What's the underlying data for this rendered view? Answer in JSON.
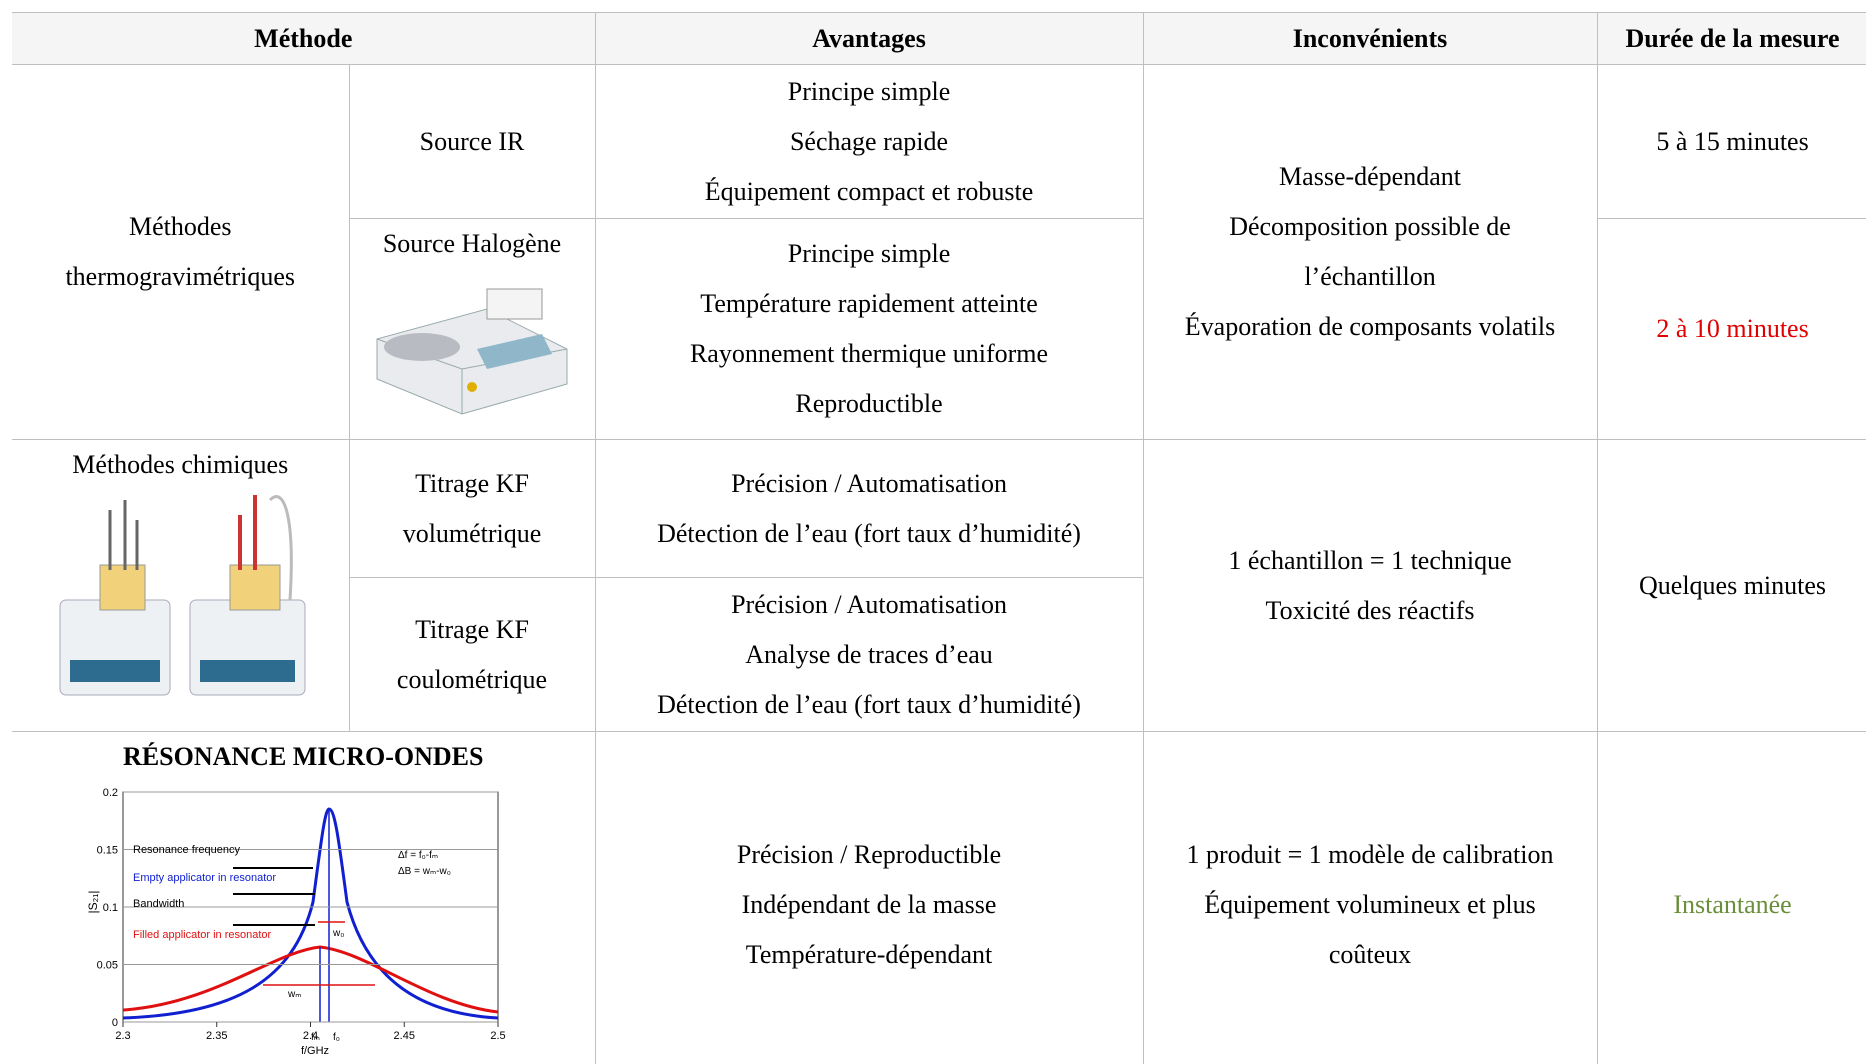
{
  "table": {
    "header": [
      "Méthode",
      "Avantages",
      "Inconvénients",
      "Durée de la mesure"
    ],
    "groups": [
      {
        "method": "Méthodes thermogravimétriques",
        "sources": [
          {
            "name": "Source IR",
            "advantages": [
              "Principe simple",
              "Séchage rapide",
              "Équipement compact et robuste"
            ],
            "duration": "5 à 15 minutes"
          },
          {
            "name": "Source Halogène",
            "advantages": [
              "Principe simple",
              "Température rapidement atteinte",
              "Rayonnement thermique uniforme",
              "Reproductible"
            ],
            "duration": "2 à 10 minutes"
          }
        ],
        "drawbacks": [
          "Masse-dépendant",
          "Décomposition possible de l’échantillon",
          "Évaporation de composants volatils"
        ]
      },
      {
        "method": "Méthodes chimiques",
        "sources": [
          {
            "name": "Titrage KF volumétrique",
            "advantages": [
              "Précision / Automatisation",
              "Détection de l’eau (fort taux d’humidité)"
            ]
          },
          {
            "name": "Titrage KF coulométrique",
            "advantages": [
              "Précision / Automatisation",
              "Analyse de traces d’eau",
              "Détection de l’eau (fort taux d’humidité)"
            ]
          }
        ],
        "drawbacks": [
          "1 échantillon = 1 technique",
          "Toxicité des réactifs"
        ],
        "duration": "Quelques minutes"
      },
      {
        "method": "RÉSONANCE MICRO-ONDES",
        "advantages": [
          "Précision / Reproductible",
          "Indépendant de la masse",
          "Température-dépendant"
        ],
        "drawbacks": [
          "1 produit = 1 modèle de calibration",
          "Équipement volumineux et plus coûteux"
        ],
        "duration": "Instantanée",
        "figure": {
          "xlim": [
            2.3,
            2.5
          ],
          "ylim": [
            0,
            0.2
          ],
          "xticks": [
            2.3,
            2.35,
            2.4,
            2.45,
            2.5
          ],
          "yticks": [
            0,
            0.05,
            0.1,
            0.15,
            0.2
          ],
          "x_label": "f/GHz",
          "y_label": "|S₂₁|",
          "labels": [
            "Resonance frequency",
            "Empty applicator in resonator",
            "Bandwidth",
            "Filled applicator in resonator"
          ],
          "formulas": [
            "Δf = f₀-fₘ",
            "ΔB = wₘ-w₀"
          ],
          "markers": [
            "w₀",
            "wₘ",
            "fₘ",
            "f₀"
          ]
        }
      }
    ]
  }
}
